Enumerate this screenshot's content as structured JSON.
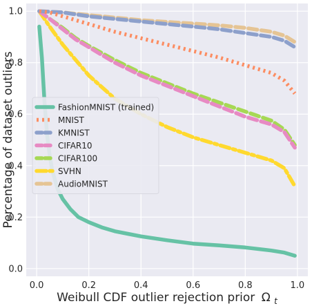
{
  "chart_data": {
    "type": "line",
    "xlabel": "Weibull CDF outlier rejection prior",
    "xlabel_symbol": "Ω",
    "xlabel_subscript": "t",
    "ylabel": "Percentage of dataset outliers",
    "xlim": [
      -0.04,
      1.04
    ],
    "ylim": [
      -0.03,
      1.03
    ],
    "xticks": [
      0.0,
      0.2,
      0.4,
      0.6,
      0.8,
      1.0
    ],
    "yticks": [
      0.0,
      0.2,
      0.4,
      0.6,
      0.8,
      1.0
    ],
    "xtick_labels": [
      "0.0",
      "0.2",
      "0.4",
      "0.6",
      "0.8",
      "1.0"
    ],
    "ytick_labels": [
      "0.0",
      "0.2",
      "0.4",
      "0.6",
      "0.8",
      "1.0"
    ],
    "grid": true,
    "background": "#eaeaf2",
    "legend_position": "center-left",
    "series": [
      {
        "name": "FashionMNIST (trained)",
        "color": "#66c2a5",
        "dash": "solid",
        "x": [
          0.01,
          0.02,
          0.03,
          0.04,
          0.05,
          0.06,
          0.08,
          0.1,
          0.13,
          0.16,
          0.2,
          0.25,
          0.3,
          0.35,
          0.4,
          0.5,
          0.6,
          0.7,
          0.8,
          0.9,
          0.95,
          0.99
        ],
        "y": [
          0.94,
          0.82,
          0.65,
          0.52,
          0.44,
          0.38,
          0.31,
          0.27,
          0.23,
          0.2,
          0.18,
          0.16,
          0.145,
          0.135,
          0.125,
          0.11,
          0.097,
          0.09,
          0.082,
          0.07,
          0.062,
          0.05
        ]
      },
      {
        "name": "MNIST",
        "color": "#fc8d62",
        "dash": "dotted",
        "x": [
          0.01,
          0.05,
          0.1,
          0.2,
          0.3,
          0.4,
          0.5,
          0.6,
          0.7,
          0.8,
          0.9,
          0.95,
          0.99
        ],
        "y": [
          1.0,
          0.995,
          0.98,
          0.95,
          0.92,
          0.895,
          0.87,
          0.845,
          0.82,
          0.79,
          0.76,
          0.73,
          0.68
        ]
      },
      {
        "name": "KMNIST",
        "color": "#8da0cb",
        "dash": "dashed",
        "x": [
          0.01,
          0.1,
          0.2,
          0.3,
          0.4,
          0.5,
          0.6,
          0.7,
          0.8,
          0.9,
          0.95,
          0.99
        ],
        "y": [
          1.0,
          0.995,
          0.98,
          0.97,
          0.96,
          0.95,
          0.94,
          0.93,
          0.915,
          0.9,
          0.885,
          0.86
        ]
      },
      {
        "name": "CIFAR10",
        "color": "#e78ac3",
        "dash": "dashed",
        "x": [
          0.01,
          0.05,
          0.1,
          0.15,
          0.2,
          0.3,
          0.4,
          0.5,
          0.6,
          0.7,
          0.8,
          0.9,
          0.95,
          0.99
        ],
        "y": [
          1.0,
          0.97,
          0.93,
          0.89,
          0.86,
          0.8,
          0.75,
          0.71,
          0.67,
          0.63,
          0.59,
          0.56,
          0.53,
          0.47
        ]
      },
      {
        "name": "CIFAR100",
        "color": "#a6d854",
        "dash": "dashed",
        "x": [
          0.01,
          0.05,
          0.1,
          0.15,
          0.2,
          0.3,
          0.4,
          0.5,
          0.6,
          0.7,
          0.8,
          0.9,
          0.95,
          0.99
        ],
        "y": [
          1.0,
          0.97,
          0.935,
          0.895,
          0.865,
          0.81,
          0.76,
          0.72,
          0.68,
          0.645,
          0.61,
          0.575,
          0.54,
          0.48
        ]
      },
      {
        "name": "SVHN",
        "color": "#ffd92f",
        "dash": "dashdot",
        "x": [
          0.01,
          0.05,
          0.1,
          0.15,
          0.2,
          0.3,
          0.4,
          0.5,
          0.6,
          0.7,
          0.8,
          0.9,
          0.95,
          0.99
        ],
        "y": [
          1.0,
          0.94,
          0.87,
          0.81,
          0.75,
          0.66,
          0.6,
          0.55,
          0.51,
          0.48,
          0.45,
          0.42,
          0.39,
          0.32
        ]
      },
      {
        "name": "AudioMNIST",
        "color": "#e5c494",
        "dash": "dashed",
        "x": [
          0.01,
          0.1,
          0.2,
          0.3,
          0.4,
          0.5,
          0.6,
          0.7,
          0.8,
          0.9,
          0.95,
          0.99
        ],
        "y": [
          1.0,
          0.995,
          0.985,
          0.975,
          0.965,
          0.958,
          0.952,
          0.945,
          0.935,
          0.92,
          0.905,
          0.88
        ]
      }
    ]
  }
}
